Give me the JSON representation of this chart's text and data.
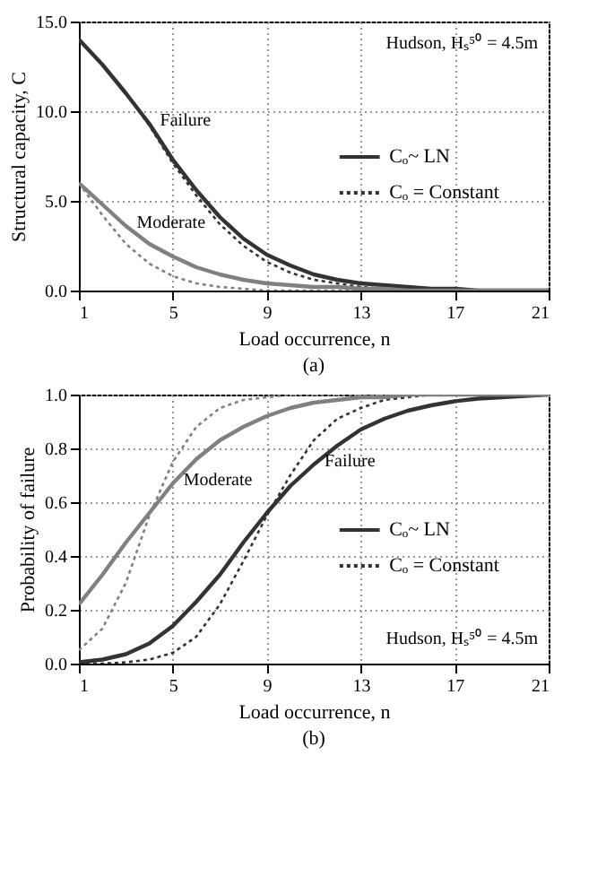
{
  "chart_data": [
    {
      "type": "line",
      "title": "(a)",
      "xlabel": "Load occurrence, n",
      "ylabel": "Structural capacity, C",
      "x": [
        1,
        2,
        3,
        4,
        5,
        6,
        7,
        8,
        9,
        10,
        11,
        12,
        13,
        14,
        15,
        16,
        17,
        18,
        19,
        20,
        21
      ],
      "xlim": [
        1,
        21
      ],
      "xticks": [
        1,
        5,
        9,
        13,
        17,
        21
      ],
      "ylim": [
        0,
        15
      ],
      "yticks": [
        {
          "value": 0,
          "label": "0.0"
        },
        {
          "value": 5,
          "label": "5.0"
        },
        {
          "value": 10,
          "label": "10.0"
        },
        {
          "value": 15,
          "label": "15.0"
        }
      ],
      "grid": true,
      "legend": "right",
      "series": [
        {
          "name": "Cₒ~ LN",
          "color": "#333333",
          "line_style": "solid",
          "values": [
            14.0,
            12.6,
            11.0,
            9.3,
            7.3,
            5.6,
            4.1,
            2.9,
            2.0,
            1.4,
            0.9,
            0.6,
            0.4,
            0.3,
            0.2,
            0.1,
            0.1,
            0.0,
            0.0,
            0.0,
            0.0
          ]
        },
        {
          "name": "Cₒ = Constant",
          "color": "#333333",
          "line_style": "dotted",
          "values": [
            14.0,
            12.6,
            11.0,
            9.2,
            7.1,
            5.3,
            3.7,
            2.5,
            1.6,
            1.0,
            0.6,
            0.4,
            0.2,
            0.1,
            0.1,
            0.0,
            0.0,
            0.0,
            0.0,
            0.0,
            0.0
          ]
        },
        {
          "color": "#808080",
          "line_style": "solid",
          "values": [
            6.0,
            4.8,
            3.6,
            2.6,
            1.9,
            1.3,
            0.9,
            0.6,
            0.4,
            0.3,
            0.2,
            0.2,
            0.1,
            0.1,
            0.0,
            0.0,
            0.0,
            0.0,
            0.0,
            0.0,
            0.0
          ]
        },
        {
          "color": "#808080",
          "line_style": "dotted",
          "values": [
            6.0,
            4.2,
            2.6,
            1.5,
            0.8,
            0.4,
            0.2,
            0.1,
            0.0,
            0.0,
            0.0,
            0.0,
            0.0,
            0.0,
            0.0,
            0.0,
            0.0,
            0.0,
            0.0,
            0.0,
            0.0
          ]
        }
      ],
      "annotations": [
        "Hudson, Hₛ⁵⁰ = 4.5m",
        {
          "text": "Failure",
          "x": 4,
          "y": 9.3
        },
        {
          "text": "Moderate",
          "x": 3,
          "y": 3.6
        }
      ]
    },
    {
      "type": "line",
      "title": "(b)",
      "xlabel": "Load occurrence, n",
      "ylabel": "Probability of failure",
      "x": [
        1,
        2,
        3,
        4,
        5,
        6,
        7,
        8,
        9,
        10,
        11,
        12,
        13,
        14,
        15,
        16,
        17,
        18,
        19,
        20,
        21
      ],
      "xlim": [
        1,
        21
      ],
      "xticks": [
        1,
        5,
        9,
        13,
        17,
        21
      ],
      "ylim": [
        0,
        1
      ],
      "yticks": [
        {
          "value": 0,
          "label": "0.0"
        },
        {
          "value": 0.2,
          "label": "0.2"
        },
        {
          "value": 0.4,
          "label": "0.4"
        },
        {
          "value": 0.6,
          "label": "0.6"
        },
        {
          "value": 0.8,
          "label": "0.8"
        },
        {
          "value": 1,
          "label": "1.0"
        }
      ],
      "grid": true,
      "legend": "right",
      "series": [
        {
          "name": "Cₒ~ LN",
          "color": "#333333",
          "line_style": "solid",
          "values": [
            0.005,
            0.015,
            0.035,
            0.075,
            0.14,
            0.23,
            0.33,
            0.45,
            0.56,
            0.66,
            0.74,
            0.81,
            0.87,
            0.91,
            0.94,
            0.96,
            0.975,
            0.985,
            0.99,
            0.995,
            1.0
          ]
        },
        {
          "name": "Cₒ = Constant",
          "color": "#333333",
          "line_style": "dotted",
          "values": [
            0.0,
            0.0,
            0.005,
            0.015,
            0.04,
            0.1,
            0.22,
            0.38,
            0.55,
            0.7,
            0.83,
            0.91,
            0.95,
            0.98,
            0.99,
            1.0,
            1.0,
            1.0,
            1.0,
            1.0,
            1.0
          ]
        },
        {
          "color": "#808080",
          "line_style": "solid",
          "values": [
            0.22,
            0.33,
            0.45,
            0.56,
            0.67,
            0.76,
            0.83,
            0.88,
            0.92,
            0.95,
            0.97,
            0.98,
            0.99,
            0.99,
            1.0,
            1.0,
            1.0,
            1.0,
            1.0,
            1.0,
            1.0
          ]
        },
        {
          "color": "#808080",
          "line_style": "dotted",
          "values": [
            0.05,
            0.13,
            0.3,
            0.55,
            0.75,
            0.88,
            0.95,
            0.98,
            0.99,
            1.0,
            1.0,
            1.0,
            1.0,
            1.0,
            1.0,
            1.0,
            1.0,
            1.0,
            1.0,
            1.0,
            1.0
          ]
        }
      ],
      "annotations": [
        "Hudson, Hₛ⁵⁰ = 4.5m",
        {
          "text": "Moderate",
          "x": 5,
          "y": 0.67
        },
        {
          "text": "Failure",
          "x": 11,
          "y": 0.74
        }
      ]
    }
  ]
}
